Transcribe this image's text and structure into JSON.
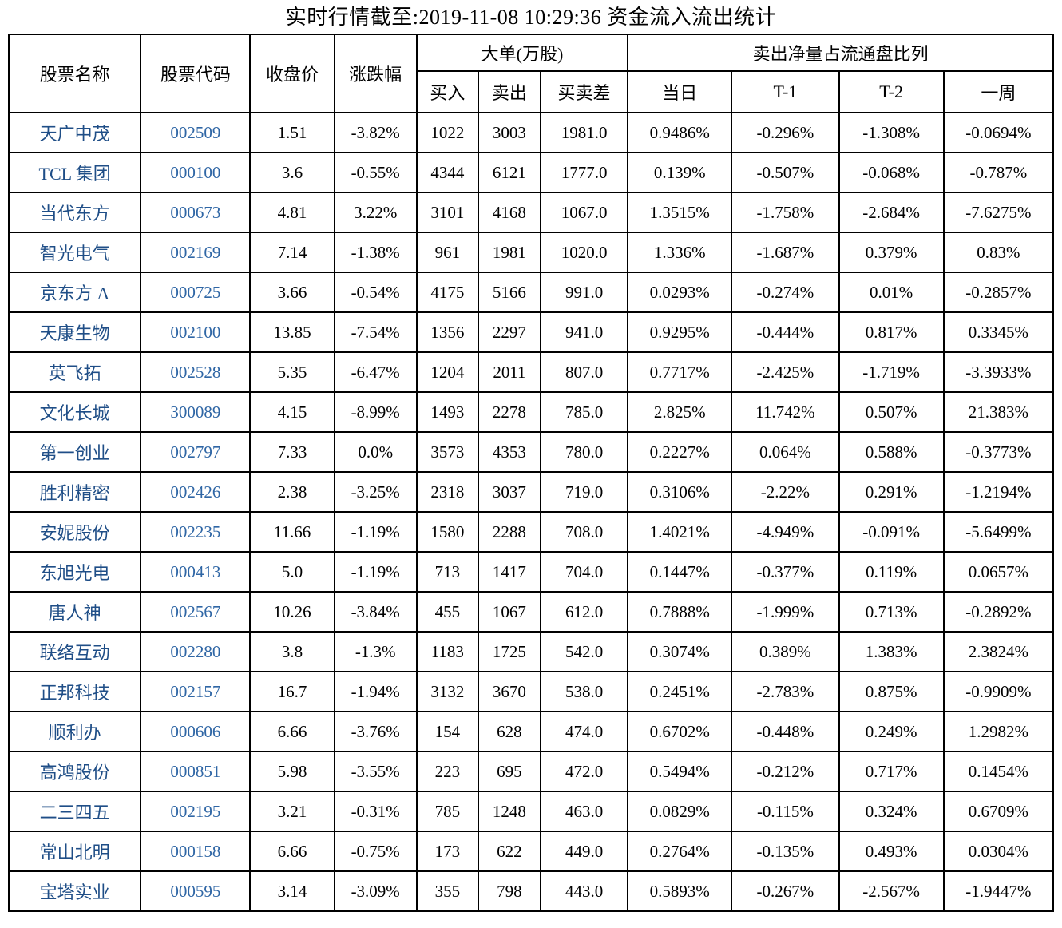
{
  "title": "实时行情截至:2019-11-08 10:29:36 资金流入流出统计",
  "colors": {
    "stock_name_blue": "#1f4e87",
    "stock_code_blue": "#2f66a5",
    "border_black": "#000000",
    "background": "#ffffff"
  },
  "table": {
    "header": {
      "stock_name": "股票名称",
      "stock_code": "股票代码",
      "close_price": "收盘价",
      "change_pct": "涨跌幅",
      "big_order_group": "大单(万股)",
      "buy": "买入",
      "sell": "卖出",
      "buy_sell_diff": "买卖差",
      "net_sell_group": "卖出净量占流通盘比列",
      "day": "当日",
      "t_minus_1": "T-1",
      "t_minus_2": "T-2",
      "week": "一周"
    },
    "column_keys": [
      "name",
      "code",
      "price",
      "change",
      "buy",
      "sell",
      "diff",
      "day",
      "t1",
      "t2",
      "week"
    ],
    "rows": [
      [
        "天广中茂",
        "002509",
        "1.51",
        "-3.82%",
        "1022",
        "3003",
        "1981.0",
        "0.9486%",
        "-0.296%",
        "-1.308%",
        "-0.0694%"
      ],
      [
        "TCL 集团",
        "000100",
        "3.6",
        "-0.55%",
        "4344",
        "6121",
        "1777.0",
        "0.139%",
        "-0.507%",
        "-0.068%",
        "-0.787%"
      ],
      [
        "当代东方",
        "000673",
        "4.81",
        "3.22%",
        "3101",
        "4168",
        "1067.0",
        "1.3515%",
        "-1.758%",
        "-2.684%",
        "-7.6275%"
      ],
      [
        "智光电气",
        "002169",
        "7.14",
        "-1.38%",
        "961",
        "1981",
        "1020.0",
        "1.336%",
        "-1.687%",
        "0.379%",
        "0.83%"
      ],
      [
        "京东方 A",
        "000725",
        "3.66",
        "-0.54%",
        "4175",
        "5166",
        "991.0",
        "0.0293%",
        "-0.274%",
        "0.01%",
        "-0.2857%"
      ],
      [
        "天康生物",
        "002100",
        "13.85",
        "-7.54%",
        "1356",
        "2297",
        "941.0",
        "0.9295%",
        "-0.444%",
        "0.817%",
        "0.3345%"
      ],
      [
        "英飞拓",
        "002528",
        "5.35",
        "-6.47%",
        "1204",
        "2011",
        "807.0",
        "0.7717%",
        "-2.425%",
        "-1.719%",
        "-3.3933%"
      ],
      [
        "文化长城",
        "300089",
        "4.15",
        "-8.99%",
        "1493",
        "2278",
        "785.0",
        "2.825%",
        "11.742%",
        "0.507%",
        "21.383%"
      ],
      [
        "第一创业",
        "002797",
        "7.33",
        "0.0%",
        "3573",
        "4353",
        "780.0",
        "0.2227%",
        "0.064%",
        "0.588%",
        "-0.3773%"
      ],
      [
        "胜利精密",
        "002426",
        "2.38",
        "-3.25%",
        "2318",
        "3037",
        "719.0",
        "0.3106%",
        "-2.22%",
        "0.291%",
        "-1.2194%"
      ],
      [
        "安妮股份",
        "002235",
        "11.66",
        "-1.19%",
        "1580",
        "2288",
        "708.0",
        "1.4021%",
        "-4.949%",
        "-0.091%",
        "-5.6499%"
      ],
      [
        "东旭光电",
        "000413",
        "5.0",
        "-1.19%",
        "713",
        "1417",
        "704.0",
        "0.1447%",
        "-0.377%",
        "0.119%",
        "0.0657%"
      ],
      [
        "唐人神",
        "002567",
        "10.26",
        "-3.84%",
        "455",
        "1067",
        "612.0",
        "0.7888%",
        "-1.999%",
        "0.713%",
        "-0.2892%"
      ],
      [
        "联络互动",
        "002280",
        "3.8",
        "-1.3%",
        "1183",
        "1725",
        "542.0",
        "0.3074%",
        "0.389%",
        "1.383%",
        "2.3824%"
      ],
      [
        "正邦科技",
        "002157",
        "16.7",
        "-1.94%",
        "3132",
        "3670",
        "538.0",
        "0.2451%",
        "-2.783%",
        "0.875%",
        "-0.9909%"
      ],
      [
        "顺利办",
        "000606",
        "6.66",
        "-3.76%",
        "154",
        "628",
        "474.0",
        "0.6702%",
        "-0.448%",
        "0.249%",
        "1.2982%"
      ],
      [
        "高鸿股份",
        "000851",
        "5.98",
        "-3.55%",
        "223",
        "695",
        "472.0",
        "0.5494%",
        "-0.212%",
        "0.717%",
        "0.1454%"
      ],
      [
        "二三四五",
        "002195",
        "3.21",
        "-0.31%",
        "785",
        "1248",
        "463.0",
        "0.0829%",
        "-0.115%",
        "0.324%",
        "0.6709%"
      ],
      [
        "常山北明",
        "000158",
        "6.66",
        "-0.75%",
        "173",
        "622",
        "449.0",
        "0.2764%",
        "-0.135%",
        "0.493%",
        "0.0304%"
      ],
      [
        "宝塔实业",
        "000595",
        "3.14",
        "-3.09%",
        "355",
        "798",
        "443.0",
        "0.5893%",
        "-0.267%",
        "-2.567%",
        "-1.9447%"
      ]
    ]
  }
}
